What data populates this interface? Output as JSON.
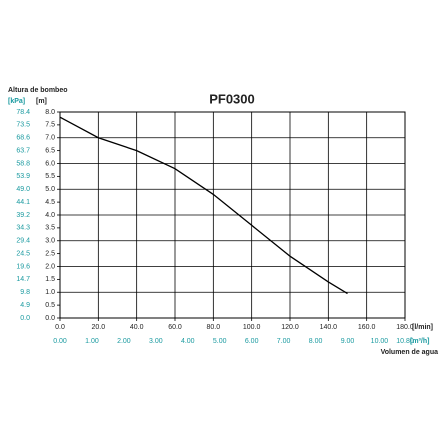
{
  "chart_data": {
    "type": "line",
    "title": "PF0300",
    "y_label": "Altura de bombeo",
    "y_unit": "[m]",
    "y2_unit": "[kPa]",
    "x_unit": "[l/min]",
    "x2_unit": "[m³/h]",
    "x_label": "Volumen de agua",
    "x": [
      0,
      20,
      40,
      60,
      80,
      100,
      120,
      140,
      150
    ],
    "series": [
      {
        "name": "PF0300",
        "color": "#000000",
        "values": [
          7.8,
          7.0,
          6.5,
          5.8,
          4.8,
          3.6,
          2.4,
          1.4,
          0.95
        ]
      }
    ],
    "xlim": [
      0,
      180
    ],
    "xticks": [
      {
        "value": 0,
        "label": "0.0"
      },
      {
        "value": 20,
        "label": "20.0"
      },
      {
        "value": 40,
        "label": "40.0"
      },
      {
        "value": 60,
        "label": "60.0"
      },
      {
        "value": 80,
        "label": "80.0"
      },
      {
        "value": 100,
        "label": "100.0"
      },
      {
        "value": 120,
        "label": "120.0"
      },
      {
        "value": 140,
        "label": "140.0"
      },
      {
        "value": 160,
        "label": "160.0"
      },
      {
        "value": 180,
        "label": "180.0"
      }
    ],
    "x2lim": [
      0,
      10.8
    ],
    "x2ticks": [
      {
        "value": 0,
        "label": "0.00"
      },
      {
        "value": 1,
        "label": "1.00"
      },
      {
        "value": 2,
        "label": "2.00"
      },
      {
        "value": 3,
        "label": "3.00"
      },
      {
        "value": 4,
        "label": "4.00"
      },
      {
        "value": 5,
        "label": "5.00"
      },
      {
        "value": 6,
        "label": "6.00"
      },
      {
        "value": 7,
        "label": "7.00"
      },
      {
        "value": 8,
        "label": "8.00"
      },
      {
        "value": 9,
        "label": "9.00"
      },
      {
        "value": 10,
        "label": "10.00"
      },
      {
        "value": 10.8,
        "label": "10.80"
      }
    ],
    "ylim": [
      0,
      8
    ],
    "yticks": [
      {
        "value": 0,
        "label": "0.0"
      },
      0.5,
      {
        "value": 1,
        "label": "1.0"
      },
      1.5,
      {
        "value": 2,
        "label": "2.0"
      },
      2.5,
      {
        "value": 3,
        "label": "3.0"
      },
      3.5,
      {
        "value": 4,
        "label": "4.0"
      },
      4.5,
      {
        "value": 5,
        "label": "5.0"
      },
      5.5,
      {
        "value": 6,
        "label": "6.0"
      },
      6.5,
      {
        "value": 7,
        "label": "7.0"
      },
      7.5,
      {
        "value": 8,
        "label": "8.0"
      }
    ],
    "y2lim": [
      0,
      78.4
    ],
    "y2ticks": [
      {
        "value": 0,
        "label": "0.0"
      },
      4.9,
      9.8,
      14.7,
      19.6,
      24.5,
      29.4,
      34.3,
      39.2,
      44.1,
      {
        "value": 49,
        "label": "49.0"
      },
      53.9,
      58.8,
      63.7,
      68.6,
      73.5,
      78.4
    ],
    "grid": true,
    "y2_color": "#1a9aa0"
  }
}
